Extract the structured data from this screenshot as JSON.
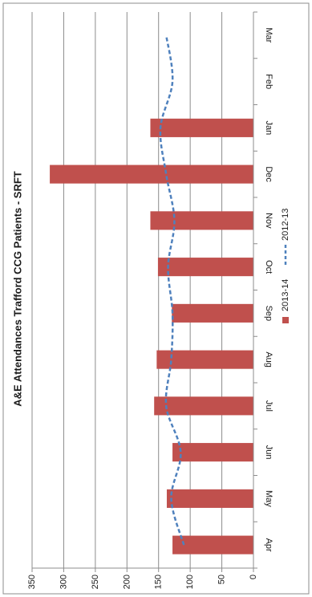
{
  "chart_data": {
    "type": "bar",
    "title": "A&E Attendances Trafford CCG Patients - SRFT",
    "xlabel": "",
    "ylabel": "",
    "categories": [
      "Apr",
      "May",
      "Jun",
      "Jul",
      "Aug",
      "Sep",
      "Oct",
      "Nov",
      "Dec",
      "Jan",
      "Feb",
      "Mar"
    ],
    "series": [
      {
        "name": "2013-14",
        "kind": "bar",
        "color": "#c0504d",
        "values": [
          128,
          137,
          128,
          157,
          153,
          129,
          151,
          163,
          322,
          163,
          null,
          null
        ]
      },
      {
        "name": "2012-13",
        "kind": "line",
        "style": "dashed",
        "color": "#4f81bd",
        "values": [
          110,
          130,
          115,
          138,
          130,
          128,
          135,
          125,
          138,
          147,
          128,
          138
        ]
      }
    ],
    "ylim": [
      0,
      350
    ],
    "yticks": [
      0,
      50,
      100,
      150,
      200,
      250,
      300,
      350
    ],
    "grid": true,
    "orientation": "rotated-90"
  }
}
